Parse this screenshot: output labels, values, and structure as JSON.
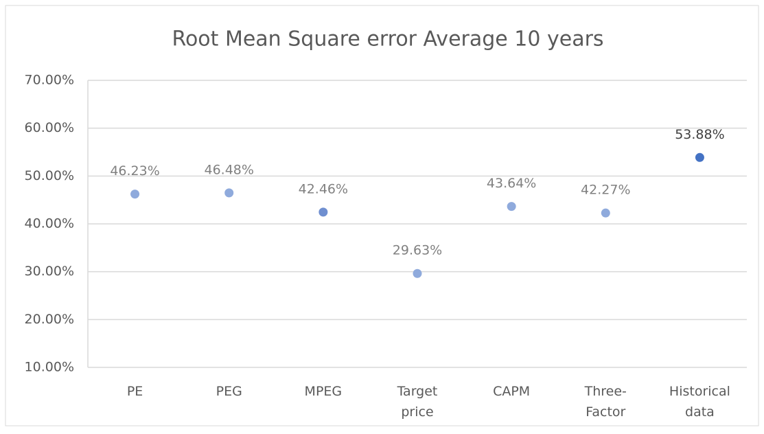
{
  "chart_data": {
    "type": "scatter",
    "title": "Root Mean Square error Average 10 years",
    "categories": [
      "PE",
      "PEG",
      "MPEG",
      "Target price",
      "CAPM",
      "Three-Factor",
      "Historical data"
    ],
    "values": [
      46.23,
      46.48,
      42.46,
      29.63,
      43.64,
      42.27,
      53.88
    ],
    "value_labels": [
      "46.23%",
      "46.48%",
      "42.46%",
      "29.63%",
      "43.64%",
      "42.27%",
      "53.88%"
    ],
    "colors": [
      "#8faadc",
      "#8faadc",
      "#6f8fd0",
      "#8faadc",
      "#8faadc",
      "#8faadc",
      "#4472c4"
    ],
    "ylim": [
      10,
      70
    ],
    "yticks": [
      {
        "value": 10,
        "label": "10.00%"
      },
      {
        "value": 20,
        "label": "20.00%"
      },
      {
        "value": 30,
        "label": "30.00%"
      },
      {
        "value": 40,
        "label": "40.00%"
      },
      {
        "value": 50,
        "label": "50.00%"
      },
      {
        "value": 60,
        "label": "60.00%"
      },
      {
        "value": 70,
        "label": "70.00%"
      }
    ],
    "grid": true
  }
}
